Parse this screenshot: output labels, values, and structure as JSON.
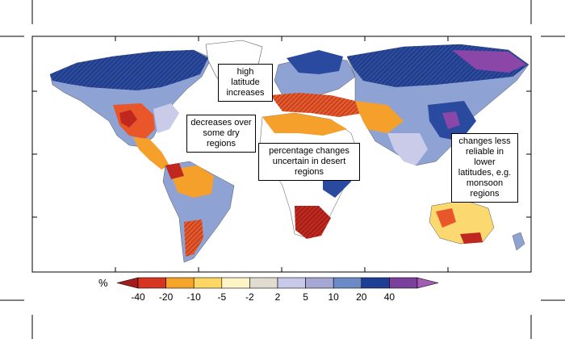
{
  "map": {
    "annotations": [
      {
        "id": "high-latitude",
        "text": "high latitude\nincreases"
      },
      {
        "id": "dry-regions",
        "text": "decreases over\nsome dry regions"
      },
      {
        "id": "desert-regions",
        "text": "percentage changes\nuncertain in desert regions"
      },
      {
        "id": "low-latitudes",
        "text": "changes less\nreliable in lower\nlatitudes, e.g.\nmonsoon regions"
      }
    ]
  },
  "legend": {
    "unit_label": "%",
    "tick_labels": [
      "-40",
      "-20",
      "-10",
      "-5",
      "-2",
      "2",
      "5",
      "10",
      "20",
      "40"
    ],
    "colors": [
      "#a51c1c",
      "#d6361f",
      "#f7a52a",
      "#fcd764",
      "#fff4c6",
      "#e0dccf",
      "#c9c9e9",
      "#a6a8d4",
      "#6b8ac6",
      "#1f3f97",
      "#7b3f9c",
      "#a35bb5"
    ]
  },
  "colors": {
    "strong_dry": "#c0281f",
    "dry": "#e8562a",
    "moderate_dry": "#f6a02c",
    "slight_dry": "#fbd870",
    "neutral": "#f5f0dc",
    "slight_wet": "#c9cbe9",
    "wet": "#8ea3d4",
    "strong_wet": "#2a4aa0",
    "extreme_wet": "#8a47a8"
  }
}
